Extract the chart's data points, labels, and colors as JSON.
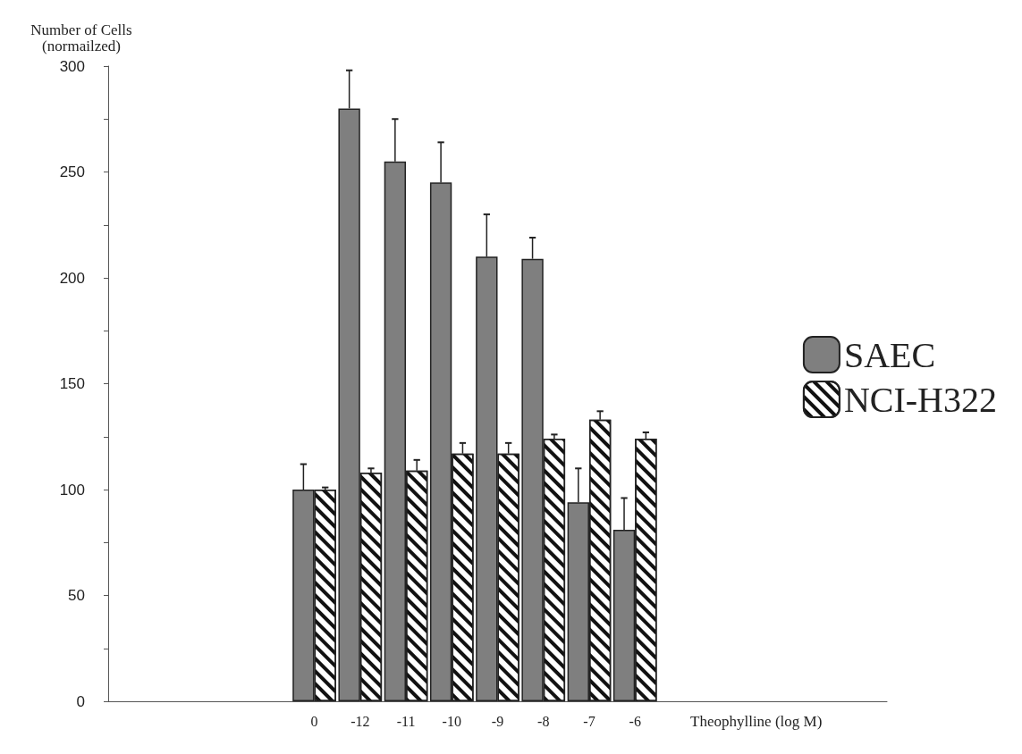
{
  "chart_data": {
    "type": "bar",
    "xlabel": "Theophylline (log M)",
    "ylabel": "Number of Cells\n(normailzed)",
    "categories": [
      null,
      null,
      null,
      null,
      "0",
      "-12",
      "-11",
      "-10",
      "-9",
      "-8",
      "-7",
      "-6",
      null,
      null,
      null,
      null,
      null
    ],
    "series": [
      {
        "name": "SAEC",
        "color": "#7f7f7f",
        "values": [
          null,
          null,
          null,
          null,
          100,
          280,
          255,
          245,
          210,
          209,
          94,
          81,
          null,
          null,
          null,
          null,
          null
        ],
        "errors": [
          null,
          null,
          null,
          null,
          12,
          18,
          20,
          19,
          20,
          10,
          16,
          15,
          null,
          null,
          null,
          null,
          null
        ]
      },
      {
        "name": "NCI-H322",
        "color": "#ffffff",
        "values": [
          null,
          null,
          null,
          null,
          100,
          108,
          109,
          117,
          117,
          124,
          133,
          124,
          null,
          null,
          null,
          null,
          null
        ],
        "errors": [
          null,
          null,
          null,
          null,
          1,
          2,
          5,
          5,
          5,
          2,
          4,
          3,
          null,
          null,
          null,
          null,
          null
        ]
      }
    ],
    "ylim": [
      0,
      300
    ],
    "yticks": [
      0,
      {
        "value": 25,
        "label": null
      },
      50,
      {
        "value": 75,
        "label": null
      },
      100,
      {
        "value": 125,
        "label": null
      },
      150,
      {
        "value": 175,
        "label": null
      },
      200,
      {
        "value": 225,
        "label": null
      },
      250,
      {
        "value": 275,
        "label": null
      },
      300
    ],
    "grid": false,
    "legend": "right"
  }
}
